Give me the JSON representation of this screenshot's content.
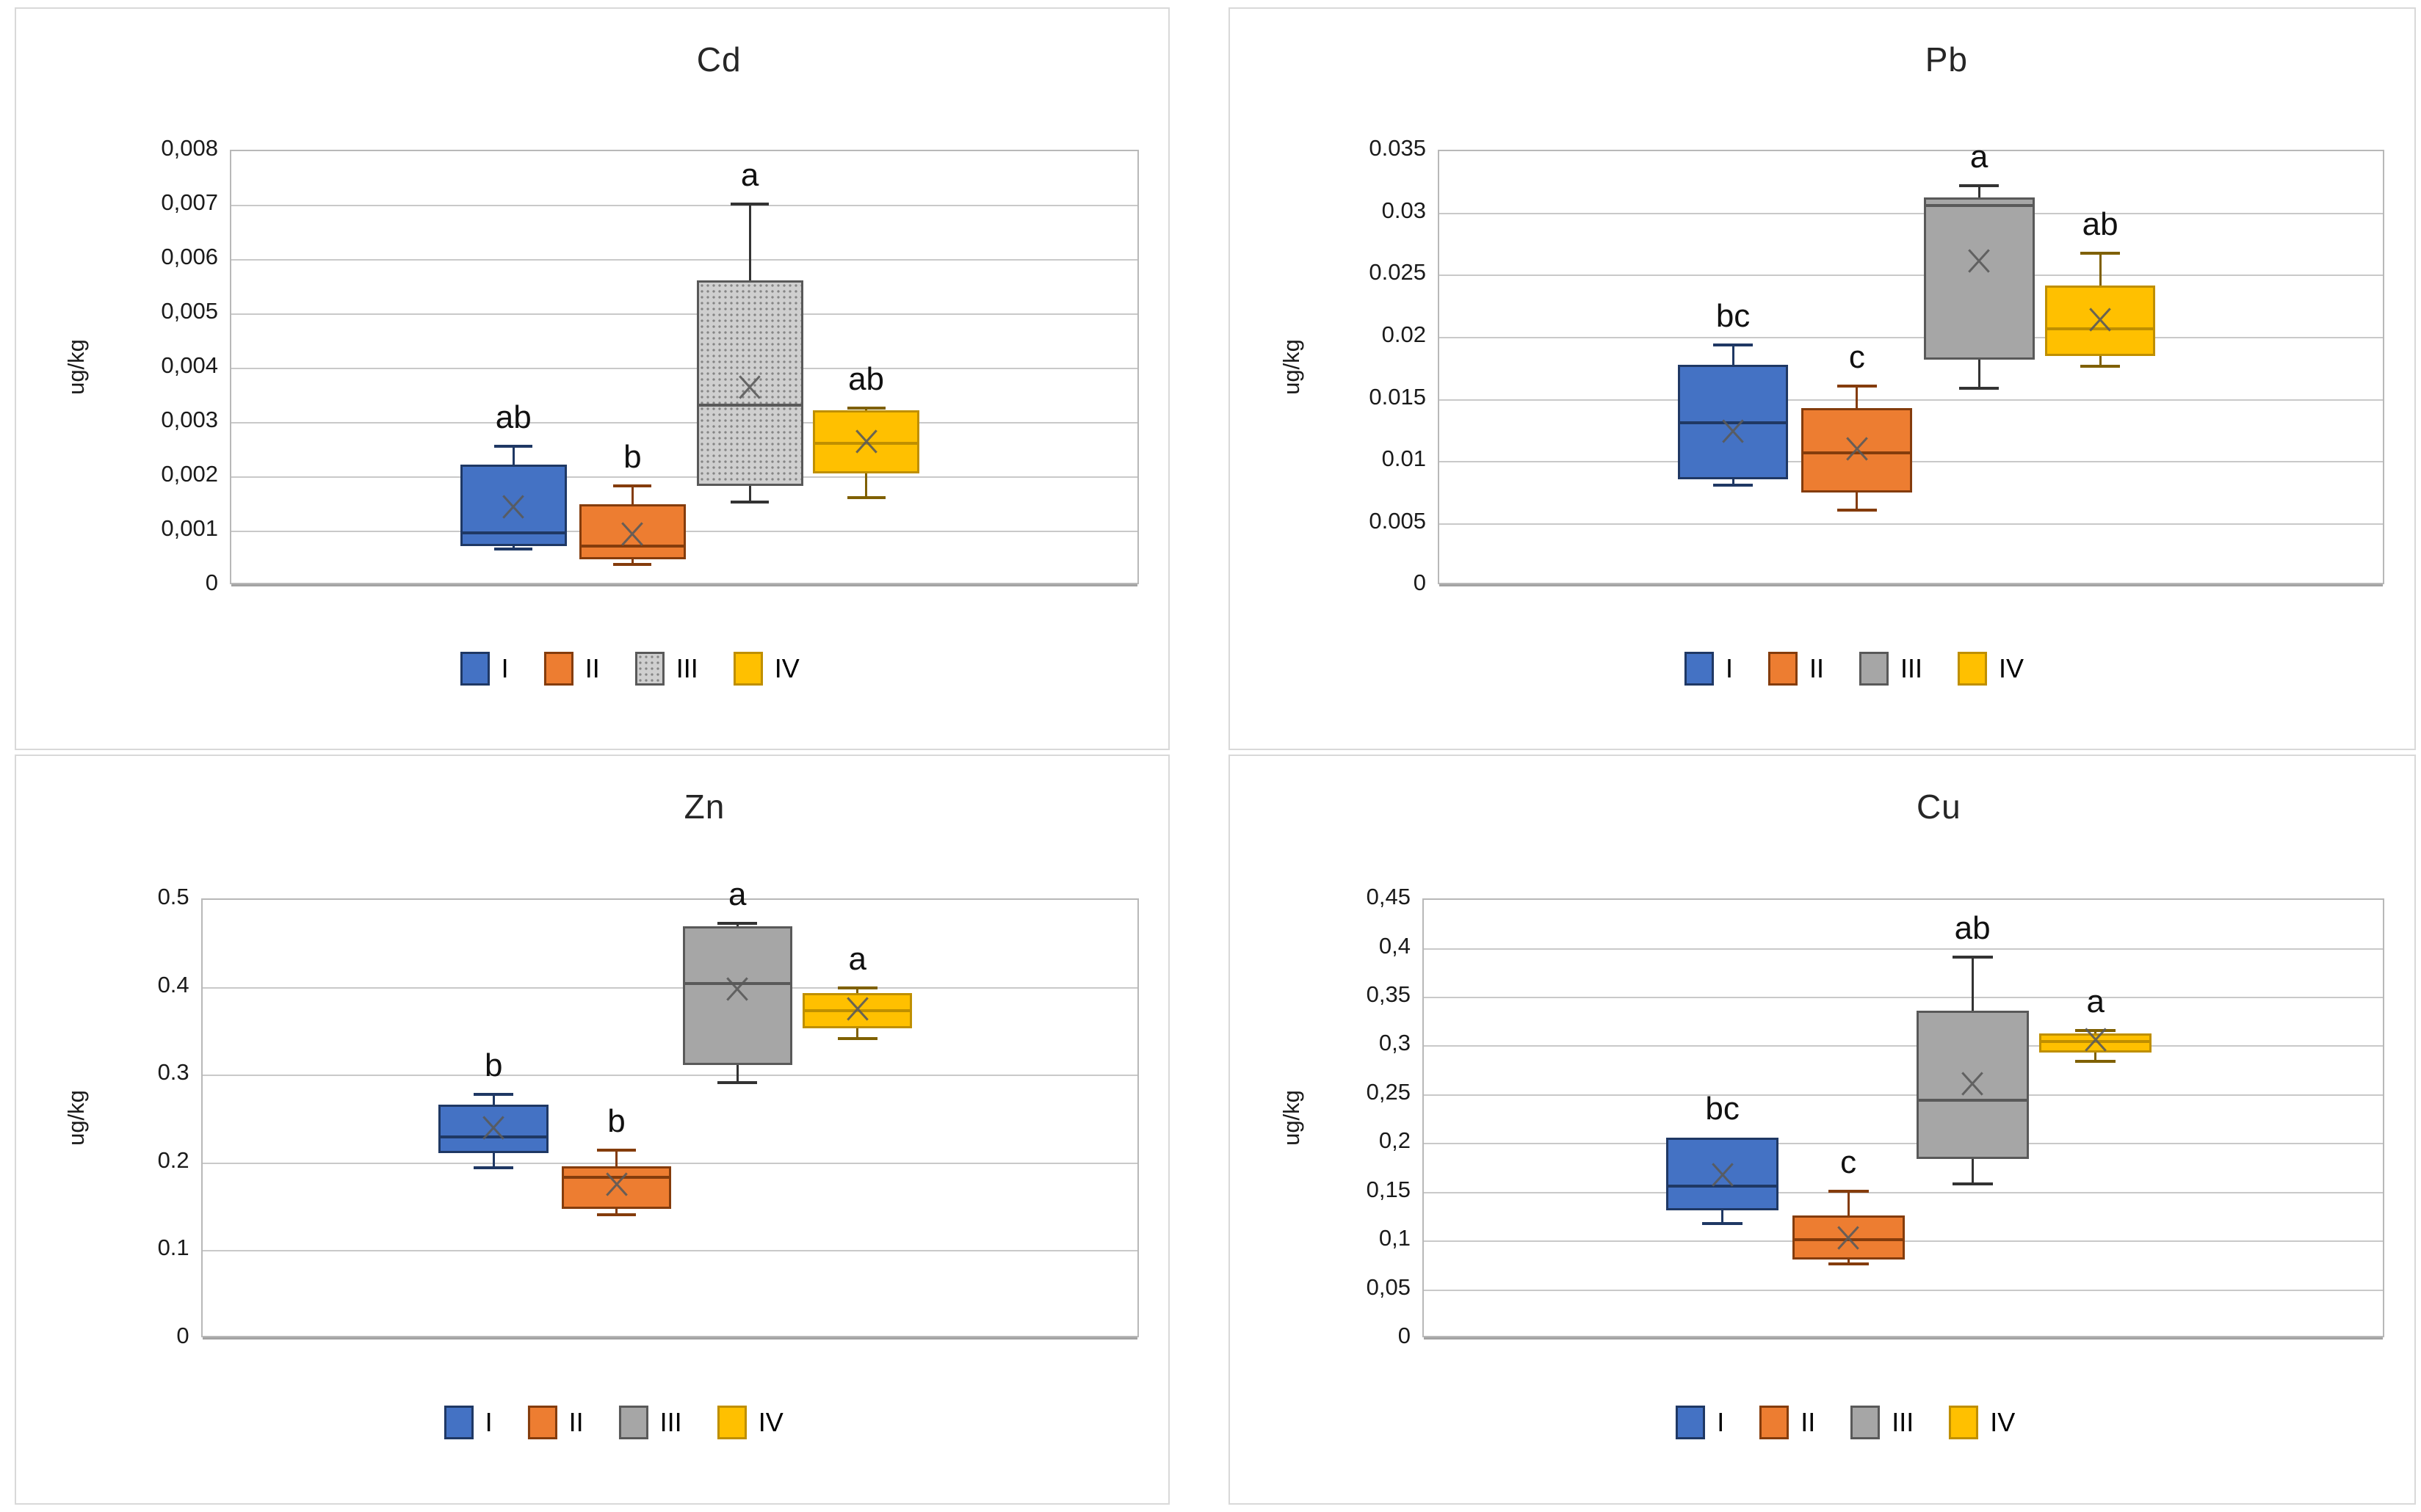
{
  "page": {
    "background": "#ffffff",
    "panel_border": "#d9d9d9"
  },
  "series": [
    {
      "id": "I",
      "legend_label": "I",
      "fill": "#4472C4",
      "border": "#1F3864",
      "whisker": "#1F3864"
    },
    {
      "id": "II",
      "legend_label": "II",
      "fill": "#ED7D31",
      "border": "#843C0C",
      "whisker": "#843C0C"
    },
    {
      "id": "III",
      "legend_label": "III",
      "fill": "#A6A6A6",
      "border": "#595959",
      "whisker": "#333333"
    },
    {
      "id": "IV",
      "legend_label": "IV",
      "fill": "#FFC000",
      "border": "#BF8F00",
      "whisker": "#7F6000"
    }
  ],
  "marker_color": "#5a5a5a",
  "chart_data": [
    {
      "type": "box",
      "title": "Cd",
      "ylabel": "ug/kg",
      "ymin": 0,
      "ymax": 0.008,
      "grid": "on",
      "legend_position": "bottom",
      "yticks": [
        {
          "value": 0.008,
          "label": "0,008"
        },
        {
          "value": 0.007,
          "label": "0,007"
        },
        {
          "value": 0.006,
          "label": "0,006"
        },
        {
          "value": 0.005,
          "label": "0,005"
        },
        {
          "value": 0.004,
          "label": "0,004"
        },
        {
          "value": 0.003,
          "label": "0,003"
        },
        {
          "value": 0.002,
          "label": "0,002"
        },
        {
          "value": 0.001,
          "label": "0,001"
        },
        {
          "value": 0,
          "label": "0"
        }
      ],
      "groups": [
        {
          "series": "I",
          "significance": "ab",
          "min": 0.00065,
          "q1": 0.0007,
          "median": 0.00095,
          "q3": 0.0022,
          "max": 0.00255,
          "mean": 0.0014,
          "fill_style": "solid"
        },
        {
          "series": "II",
          "significance": "b",
          "min": 0.00037,
          "q1": 0.00047,
          "median": 0.0007,
          "q3": 0.00148,
          "max": 0.00182,
          "mean": 0.0009,
          "fill_style": "solid"
        },
        {
          "series": "III",
          "significance": "a",
          "min": 0.00152,
          "q1": 0.00181,
          "median": 0.0033,
          "q3": 0.0056,
          "max": 0.007,
          "mean": 0.0036,
          "fill_style": "dotted"
        },
        {
          "series": "IV",
          "significance": "ab",
          "min": 0.0016,
          "q1": 0.00205,
          "median": 0.0026,
          "q3": 0.0032,
          "max": 0.00325,
          "mean": 0.0026,
          "fill_style": "solid"
        }
      ]
    },
    {
      "type": "box",
      "title": "Pb",
      "ylabel": "ug/kg",
      "ymin": 0,
      "ymax": 0.035,
      "grid": "on",
      "legend_position": "bottom",
      "yticks": [
        {
          "value": 0.035,
          "label": "0.035"
        },
        {
          "value": 0.03,
          "label": "0.03"
        },
        {
          "value": 0.025,
          "label": "0.025"
        },
        {
          "value": 0.02,
          "label": "0.02"
        },
        {
          "value": 0.015,
          "label": "0.015"
        },
        {
          "value": 0.01,
          "label": "0.01"
        },
        {
          "value": 0.005,
          "label": "0.005"
        },
        {
          "value": 0,
          "label": "0"
        }
      ],
      "groups": [
        {
          "series": "I",
          "significance": "bc",
          "min": 0.008,
          "q1": 0.0085,
          "median": 0.013,
          "q3": 0.0177,
          "max": 0.0193,
          "mean": 0.0122,
          "fill_style": "solid"
        },
        {
          "series": "II",
          "significance": "c",
          "min": 0.006,
          "q1": 0.0074,
          "median": 0.0106,
          "q3": 0.0142,
          "max": 0.016,
          "mean": 0.0108,
          "fill_style": "solid"
        },
        {
          "series": "III",
          "significance": "a",
          "min": 0.0158,
          "q1": 0.0181,
          "median": 0.0305,
          "q3": 0.0312,
          "max": 0.0321,
          "mean": 0.0259,
          "fill_style": "solid"
        },
        {
          "series": "IV",
          "significance": "ab",
          "min": 0.0176,
          "q1": 0.0184,
          "median": 0.0206,
          "q3": 0.0241,
          "max": 0.0267,
          "mean": 0.0212,
          "fill_style": "solid"
        }
      ]
    },
    {
      "type": "box",
      "title": "Zn",
      "ylabel": "ug/kg",
      "ymin": 0,
      "ymax": 0.5,
      "grid": "on",
      "legend_position": "bottom",
      "yticks": [
        {
          "value": 0.5,
          "label": "0.5"
        },
        {
          "value": 0.4,
          "label": "0.4"
        },
        {
          "value": 0.3,
          "label": "0.3"
        },
        {
          "value": 0.2,
          "label": "0.2"
        },
        {
          "value": 0.1,
          "label": "0.1"
        },
        {
          "value": 0,
          "label": "0"
        }
      ],
      "groups": [
        {
          "series": "I",
          "significance": "b",
          "min": 0.193,
          "q1": 0.21,
          "median": 0.228,
          "q3": 0.265,
          "max": 0.277,
          "mean": 0.237,
          "fill_style": "solid"
        },
        {
          "series": "II",
          "significance": "b",
          "min": 0.14,
          "q1": 0.146,
          "median": 0.182,
          "q3": 0.195,
          "max": 0.213,
          "mean": 0.172,
          "fill_style": "solid"
        },
        {
          "series": "III",
          "significance": "a",
          "min": 0.29,
          "q1": 0.31,
          "median": 0.403,
          "q3": 0.468,
          "max": 0.472,
          "mean": 0.395,
          "fill_style": "solid"
        },
        {
          "series": "IV",
          "significance": "a",
          "min": 0.34,
          "q1": 0.352,
          "median": 0.372,
          "q3": 0.392,
          "max": 0.398,
          "mean": 0.372,
          "fill_style": "solid"
        }
      ]
    },
    {
      "type": "box",
      "title": "Cu",
      "ylabel": "ug/kg",
      "ymin": 0,
      "ymax": 0.45,
      "grid": "on",
      "legend_position": "bottom",
      "yticks": [
        {
          "value": 0.45,
          "label": "0,45"
        },
        {
          "value": 0.4,
          "label": "0,4"
        },
        {
          "value": 0.35,
          "label": "0,35"
        },
        {
          "value": 0.3,
          "label": "0,3"
        },
        {
          "value": 0.25,
          "label": "0,25"
        },
        {
          "value": 0.2,
          "label": "0,2"
        },
        {
          "value": 0.15,
          "label": "0,15"
        },
        {
          "value": 0.1,
          "label": "0,1"
        },
        {
          "value": 0.05,
          "label": "0,05"
        },
        {
          "value": 0,
          "label": "0"
        }
      ],
      "groups": [
        {
          "series": "I",
          "significance": "bc",
          "min": 0.117,
          "q1": 0.13,
          "median": 0.155,
          "q3": 0.205,
          "max": 0.205,
          "mean": 0.165,
          "fill_style": "solid"
        },
        {
          "series": "II",
          "significance": "c",
          "min": 0.075,
          "q1": 0.08,
          "median": 0.1,
          "q3": 0.125,
          "max": 0.15,
          "mean": 0.1,
          "fill_style": "solid"
        },
        {
          "series": "III",
          "significance": "ab",
          "min": 0.157,
          "q1": 0.183,
          "median": 0.243,
          "q3": 0.335,
          "max": 0.39,
          "mean": 0.258,
          "fill_style": "solid"
        },
        {
          "series": "IV",
          "significance": "a",
          "min": 0.283,
          "q1": 0.292,
          "median": 0.303,
          "q3": 0.312,
          "max": 0.315,
          "mean": 0.303,
          "fill_style": "solid"
        }
      ]
    }
  ]
}
